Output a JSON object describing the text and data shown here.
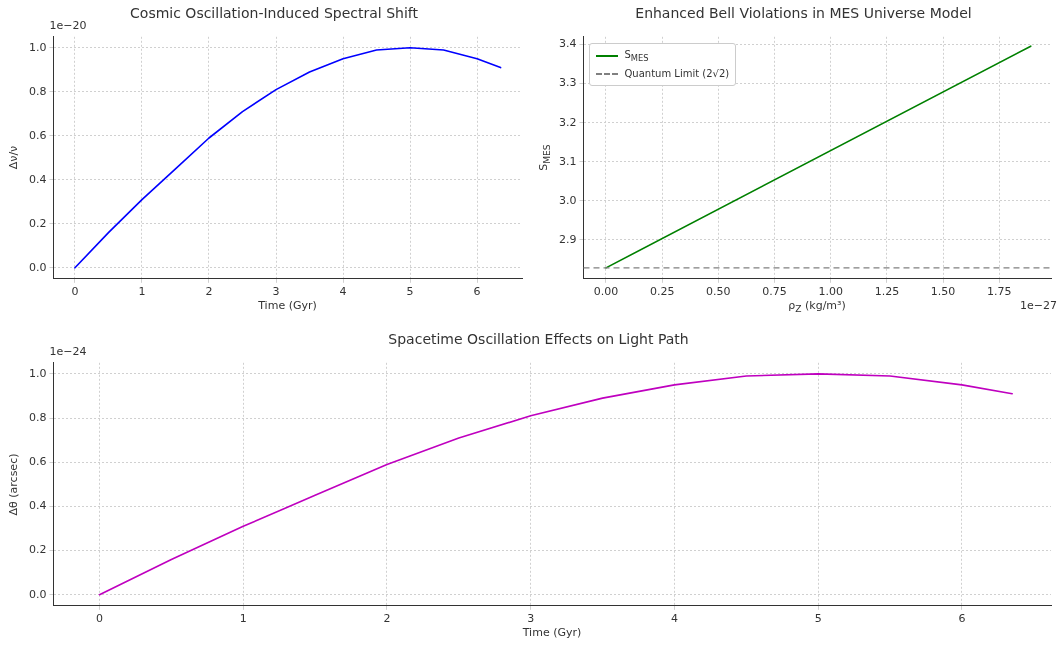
{
  "chart_data": [
    {
      "type": "line",
      "title": "Cosmic Oscillation-Induced Spectral Shift",
      "xlabel": "Time (Gyr)",
      "ylabel": "Δν/ν",
      "x": [
        0,
        0.5,
        1,
        1.5,
        2,
        2.5,
        3,
        3.5,
        4,
        4.5,
        5,
        5.5,
        6,
        6.35
      ],
      "series": [
        {
          "color": "#0000ff",
          "values": [
            0,
            0.16,
            0.31,
            0.45,
            0.59,
            0.71,
            0.81,
            0.89,
            0.95,
            0.99,
            1.0,
            0.99,
            0.95,
            0.91
          ]
        }
      ],
      "xlim": [
        -0.32,
        6.67
      ],
      "xticks": [
        0,
        1,
        2,
        3,
        4,
        5,
        6
      ],
      "ylim": [
        -0.05,
        1.05
      ],
      "yticks": [
        {
          "value": 0,
          "label": "0.0"
        },
        0.2,
        0.4,
        0.6,
        0.8,
        {
          "value": 1,
          "label": "1.0"
        }
      ],
      "grid": true,
      "annotations": [
        "1e−20"
      ]
    },
    {
      "type": "line",
      "title": "Enhanced Bell Violations in MES Universe Model",
      "xlabel": "ρ$_{Z}$ (kg/m³)",
      "ylabel": "S$_{MES}$",
      "series": [
        {
          "name": "S$_{MES}$",
          "color": "#008000",
          "x": [
            0,
            1.89
          ],
          "values": [
            2.828,
            3.396
          ]
        }
      ],
      "ref_lines": [
        {
          "axis": "y",
          "value": 2.828,
          "label": "Quantum Limit (2√2)",
          "color": "#808080",
          "line_style": "dashed"
        }
      ],
      "xlim": [
        -0.1,
        1.98
      ],
      "xticks": [
        {
          "value": 0,
          "label": "0.00"
        },
        0.25,
        {
          "value": 0.5,
          "label": "0.50"
        },
        0.75,
        {
          "value": 1,
          "label": "1.00"
        },
        1.25,
        {
          "value": 1.5,
          "label": "1.50"
        },
        1.75
      ],
      "ylim": [
        2.8,
        3.42
      ],
      "yticks": [
        2.9,
        {
          "value": 3,
          "label": "3.0"
        },
        3.1,
        3.2,
        3.3,
        3.4
      ],
      "grid": true,
      "legend": "top left",
      "annotations": [
        "1e−27"
      ]
    },
    {
      "type": "line",
      "title": "Spacetime Oscillation Effects on Light Path",
      "xlabel": "Time (Gyr)",
      "ylabel": "Δθ (arcsec)",
      "x": [
        0,
        0.5,
        1,
        1.5,
        2,
        2.5,
        3,
        3.5,
        4,
        4.5,
        5,
        5.5,
        6,
        6.35
      ],
      "series": [
        {
          "color": "#bf00bf",
          "values": [
            0,
            0.16,
            0.31,
            0.45,
            0.59,
            0.71,
            0.81,
            0.89,
            0.95,
            0.99,
            1.0,
            0.99,
            0.95,
            0.91
          ]
        }
      ],
      "xlim": [
        -0.32,
        6.62
      ],
      "xticks": [
        0,
        1,
        2,
        3,
        4,
        5,
        6
      ],
      "ylim": [
        -0.05,
        1.05
      ],
      "yticks": [
        {
          "value": 0,
          "label": "0.0"
        },
        0.2,
        0.4,
        0.6,
        0.8,
        {
          "value": 1,
          "label": "1.0"
        }
      ],
      "grid": true,
      "annotations": [
        "1e−24"
      ]
    }
  ]
}
